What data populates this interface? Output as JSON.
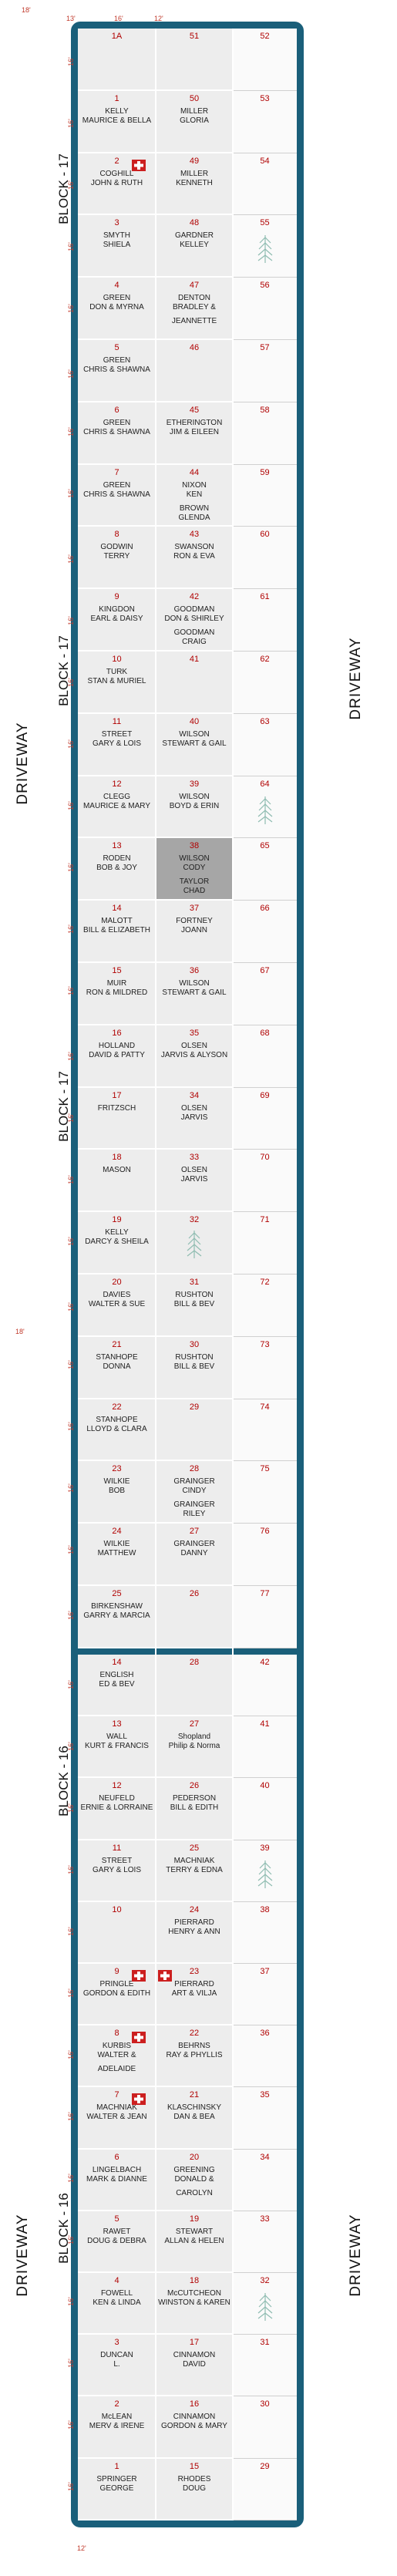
{
  "labels": {
    "block17": "BLOCK - 17",
    "block16": "BLOCK - 16",
    "driveway": "DRIVEWAY",
    "dim_18": "18'",
    "dim_13": "13'",
    "dim_16": "16'",
    "dim_12": "12'"
  },
  "colors": {
    "frame": "#1a5f7a",
    "lot_number": "#b00000",
    "dimension": "#c0392b",
    "tree": "#8fbcb1",
    "flag": "#cc1f1f",
    "highlight": "#a6a6a6"
  },
  "block17": {
    "rows": [
      {
        "l": {
          "n": "1A",
          "a": ""
        },
        "m": {
          "n": "51",
          "a": ""
        },
        "r": "52"
      },
      {
        "l": {
          "n": "1",
          "a": "KELLY",
          "b": "MAURICE & BELLA"
        },
        "m": {
          "n": "50",
          "a": "MILLER",
          "b": "GLORIA"
        },
        "r": "53"
      },
      {
        "l": {
          "n": "2",
          "a": "COGHILL",
          "b": "JOHN & RUTH",
          "flag": true
        },
        "m": {
          "n": "49",
          "a": "MILLER",
          "b": "KENNETH"
        },
        "r": "54"
      },
      {
        "l": {
          "n": "3",
          "a": "SMYTH",
          "b": "SHIELA"
        },
        "m": {
          "n": "48",
          "a": "GARDNER",
          "b": "KELLEY"
        },
        "r": "55",
        "tree": true
      },
      {
        "l": {
          "n": "4",
          "a": "GREEN",
          "b": "DON & MYRNA"
        },
        "m": {
          "n": "47",
          "a": "DENTON",
          "b": "BRADLEY &",
          "c": "JEANNETTE"
        },
        "r": "56"
      },
      {
        "l": {
          "n": "5",
          "a": "GREEN",
          "b": "CHRIS & SHAWNA"
        },
        "m": {
          "n": "46",
          "a": ""
        },
        "r": "57"
      },
      {
        "l": {
          "n": "6",
          "a": "GREEN",
          "b": "CHRIS & SHAWNA"
        },
        "m": {
          "n": "45",
          "a": "ETHERINGTON",
          "b": "JIM & EILEEN"
        },
        "r": "58"
      },
      {
        "l": {
          "n": "7",
          "a": "GREEN",
          "b": "CHRIS & SHAWNA"
        },
        "m": {
          "n": "44",
          "a": "NIXON",
          "b": "KEN",
          "c": "BROWN",
          "d": "GLENDA"
        },
        "r": "59"
      },
      {
        "l": {
          "n": "8",
          "a": "GODWIN",
          "b": "TERRY"
        },
        "m": {
          "n": "43",
          "a": "SWANSON",
          "b": "RON & EVA"
        },
        "r": "60"
      },
      {
        "l": {
          "n": "9",
          "a": "KINGDON",
          "b": "EARL & DAISY"
        },
        "m": {
          "n": "42",
          "a": "GOODMAN",
          "b": "DON & SHIRLEY",
          "c": "GOODMAN",
          "d": "CRAIG"
        },
        "r": "61"
      },
      {
        "l": {
          "n": "10",
          "a": "TURK",
          "b": "STAN & MURIEL"
        },
        "m": {
          "n": "41",
          "a": ""
        },
        "r": "62"
      },
      {
        "l": {
          "n": "11",
          "a": "STREET",
          "b": "GARY & LOIS"
        },
        "m": {
          "n": "40",
          "a": "WILSON",
          "b": "STEWART & GAIL"
        },
        "r": "63"
      },
      {
        "l": {
          "n": "12",
          "a": "CLEGG",
          "b": "MAURICE & MARY"
        },
        "m": {
          "n": "39",
          "a": "WILSON",
          "b": "BOYD & ERIN"
        },
        "r": "64",
        "tree": true
      },
      {
        "l": {
          "n": "13",
          "a": "RODEN",
          "b": "BOB & JOY"
        },
        "m": {
          "n": "38",
          "a": "WILSON",
          "b": "CODY",
          "c": "TAYLOR",
          "d": "CHAD",
          "hl": true
        },
        "r": "65"
      },
      {
        "l": {
          "n": "14",
          "a": "MALOTT",
          "b": "BILL & ELIZABETH"
        },
        "m": {
          "n": "37",
          "a": "FORTNEY",
          "b": "JOANN"
        },
        "r": "66"
      },
      {
        "l": {
          "n": "15",
          "a": "MUIR",
          "b": "RON & MILDRED"
        },
        "m": {
          "n": "36",
          "a": "WILSON",
          "b": "STEWART & GAIL"
        },
        "r": "67"
      },
      {
        "l": {
          "n": "16",
          "a": "HOLLAND",
          "b": "DAVID & PATTY"
        },
        "m": {
          "n": "35",
          "a": "OLSEN",
          "b": "JARVIS & ALYSON"
        },
        "r": "68"
      },
      {
        "l": {
          "n": "17",
          "a": "FRITZSCH",
          "b": ""
        },
        "m": {
          "n": "34",
          "a": "OLSEN",
          "b": "JARVIS"
        },
        "r": "69"
      },
      {
        "l": {
          "n": "18",
          "a": "MASON",
          "b": ""
        },
        "m": {
          "n": "33",
          "a": "OLSEN",
          "b": "JARVIS"
        },
        "r": "70"
      },
      {
        "l": {
          "n": "19",
          "a": "KELLY",
          "b": "DARCY & SHEILA"
        },
        "m": {
          "n": "32",
          "a": "",
          "tree": true
        },
        "r": "71"
      },
      {
        "l": {
          "n": "20",
          "a": "DAVIES",
          "b": "WALTER & SUE"
        },
        "m": {
          "n": "31",
          "a": "RUSHTON",
          "b": "BILL & BEV"
        },
        "r": "72"
      },
      {
        "l": {
          "n": "21",
          "a": "STANHOPE",
          "b": "DONNA"
        },
        "m": {
          "n": "30",
          "a": "RUSHTON",
          "b": "BILL & BEV"
        },
        "r": "73"
      },
      {
        "l": {
          "n": "22",
          "a": "STANHOPE",
          "b": "LLOYD & CLARA"
        },
        "m": {
          "n": "29",
          "a": ""
        },
        "r": "74"
      },
      {
        "l": {
          "n": "23",
          "a": "WILKIE",
          "b": "BOB"
        },
        "m": {
          "n": "28",
          "a": "GRAINGER",
          "b": "CINDY",
          "c": "GRAINGER",
          "d": "RILEY"
        },
        "r": "75"
      },
      {
        "l": {
          "n": "24",
          "a": "WILKIE",
          "b": "MATTHEW"
        },
        "m": {
          "n": "27",
          "a": "GRAINGER",
          "b": "DANNY"
        },
        "r": "76"
      },
      {
        "l": {
          "n": "25",
          "a": "BIRKENSHAW",
          "b": "GARRY & MARCIA"
        },
        "m": {
          "n": "26",
          "a": ""
        },
        "r": "77"
      }
    ]
  },
  "block16": {
    "rows": [
      {
        "l": {
          "n": "14",
          "a": "ENGLISH",
          "b": "ED & BEV"
        },
        "m": {
          "n": "28",
          "a": ""
        },
        "r": "42"
      },
      {
        "l": {
          "n": "13",
          "a": "WALL",
          "b": "KURT & FRANCIS"
        },
        "m": {
          "n": "27",
          "a": "Shopland",
          "b": "Philip & Norma"
        },
        "r": "41"
      },
      {
        "l": {
          "n": "12",
          "a": "NEUFELD",
          "b": "ERNIE & LORRAINE"
        },
        "m": {
          "n": "26",
          "a": "PEDERSON",
          "b": "BILL & EDITH"
        },
        "r": "40"
      },
      {
        "l": {
          "n": "11",
          "a": "STREET",
          "b": "GARY & LOIS"
        },
        "m": {
          "n": "25",
          "a": "MACHNIAK",
          "b": "TERRY & EDNA"
        },
        "r": "39",
        "tree": true
      },
      {
        "l": {
          "n": "10",
          "a": ""
        },
        "m": {
          "n": "24",
          "a": "PIERRARD",
          "b": "HENRY & ANN"
        },
        "r": "38"
      },
      {
        "l": {
          "n": "9",
          "a": "PRINGLE",
          "b": "GORDON & EDITH",
          "flag": true
        },
        "m": {
          "n": "23",
          "a": "PIERRARD",
          "b": "ART & VILJA",
          "flag": true
        },
        "r": "37"
      },
      {
        "l": {
          "n": "8",
          "a": "KURBIS",
          "b": "WALTER &",
          "c": "ADELAIDE",
          "flag": true
        },
        "m": {
          "n": "22",
          "a": "BEHRNS",
          "b": "RAY & PHYLLIS"
        },
        "r": "36"
      },
      {
        "l": {
          "n": "7",
          "a": "MACHNIAK",
          "b": "WALTER & JEAN",
          "flag": true
        },
        "m": {
          "n": "21",
          "a": "KLASCHINSKY",
          "b": "DAN & BEA"
        },
        "r": "35"
      },
      {
        "l": {
          "n": "6",
          "a": "LINGELBACH",
          "b": "MARK & DIANNE"
        },
        "m": {
          "n": "20",
          "a": "GREENING",
          "b": "DONALD &",
          "c": "CAROLYN"
        },
        "r": "34"
      },
      {
        "l": {
          "n": "5",
          "a": "RAWET",
          "b": "DOUG & DEBRA"
        },
        "m": {
          "n": "19",
          "a": "STEWART",
          "b": "ALLAN & HELEN"
        },
        "r": "33"
      },
      {
        "l": {
          "n": "4",
          "a": "FOWELL",
          "b": "KEN & LINDA"
        },
        "m": {
          "n": "18",
          "a": "McCUTCHEON",
          "b": "WINSTON & KAREN"
        },
        "r": "32",
        "tree": true
      },
      {
        "l": {
          "n": "3",
          "a": "DUNCAN",
          "b": "L."
        },
        "m": {
          "n": "17",
          "a": "CINNAMON",
          "b": "DAVID"
        },
        "r": "31"
      },
      {
        "l": {
          "n": "2",
          "a": "McLEAN",
          "b": "MERV & IRENE"
        },
        "m": {
          "n": "16",
          "a": "CINNAMON",
          "b": "GORDON & MARY"
        },
        "r": "30"
      },
      {
        "l": {
          "n": "1",
          "a": "SPRINGER",
          "b": "GEORGE"
        },
        "m": {
          "n": "15",
          "a": "RHODES",
          "b": "DOUG"
        },
        "r": "29"
      }
    ]
  }
}
